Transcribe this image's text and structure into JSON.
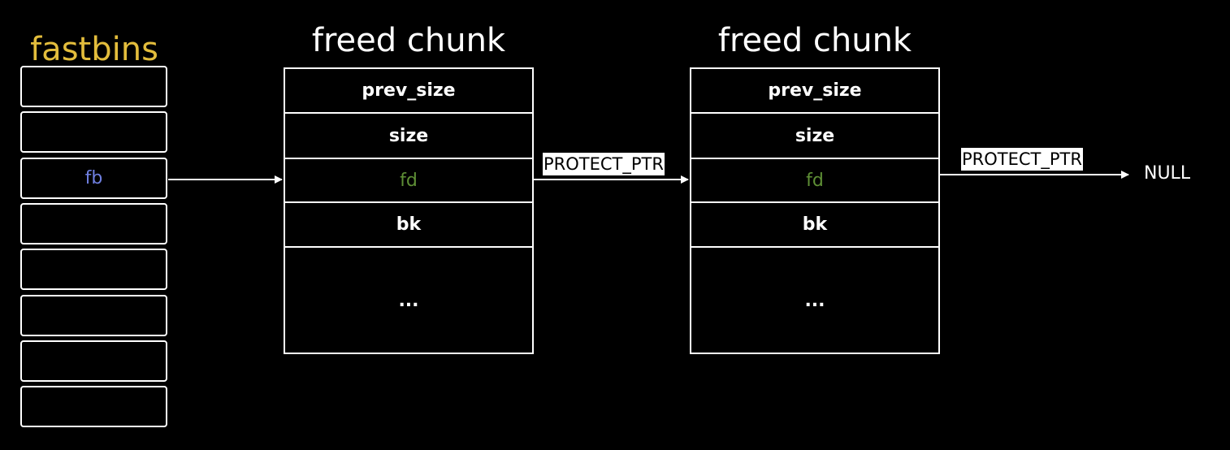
{
  "diagram": {
    "colors": {
      "background": "#000000",
      "lines": "#ffffff",
      "fastbins_title": "#e3bd3c",
      "fb_pointer": "#6f7fe0",
      "fd_field": "#5e8f35"
    },
    "fastbins": {
      "title": "fastbins",
      "slots": [
        "",
        "",
        "fb",
        "",
        "",
        "",
        "",
        ""
      ]
    },
    "chunks": [
      {
        "title": "freed chunk",
        "fields": {
          "prev_size": "prev_size",
          "size": "size",
          "fd": "fd",
          "bk": "bk",
          "rest": "..."
        }
      },
      {
        "title": "freed chunk",
        "fields": {
          "prev_size": "prev_size",
          "size": "size",
          "fd": "fd",
          "bk": "bk",
          "rest": "..."
        }
      }
    ],
    "edges": {
      "chunk1_to_chunk2_label": "PROTECT_PTR",
      "chunk2_to_null_label": "PROTECT_PTR",
      "terminal": "NULL"
    }
  }
}
